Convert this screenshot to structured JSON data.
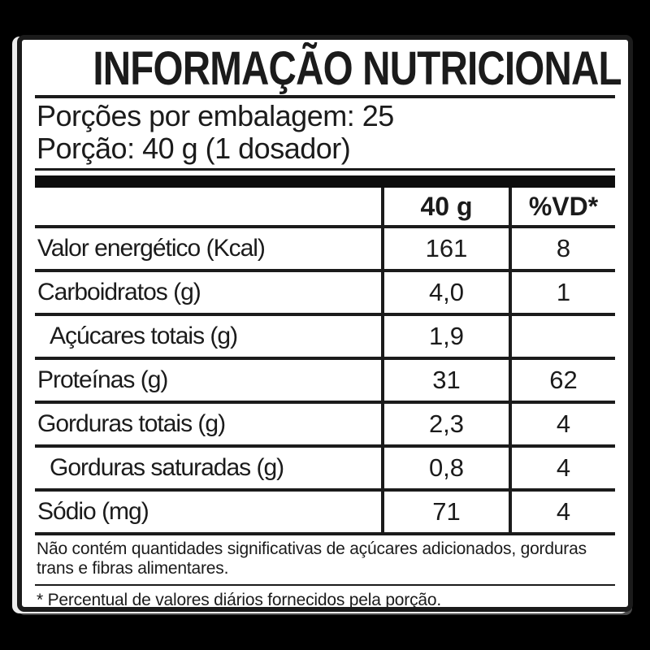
{
  "colors": {
    "background": "#000000",
    "panel": "#ffffff",
    "ink": "#1b1b1b"
  },
  "title": "INFORMAÇÃO NUTRICIONAL",
  "serving_info": {
    "servings_per_package": "Porções por embalagem: 25",
    "serving_size": "Porção: 40 g (1 dosador)"
  },
  "table": {
    "columns": {
      "amount": "40 g",
      "dv": "%VD*"
    },
    "rows": [
      {
        "name": "Valor energético (Kcal)",
        "amount": "161",
        "dv": "8",
        "indent": false
      },
      {
        "name": "Carboidratos (g)",
        "amount": "4,0",
        "dv": "1",
        "indent": false
      },
      {
        "name": "Açúcares totais (g)",
        "amount": "1,9",
        "dv": "",
        "indent": true
      },
      {
        "name": "Proteínas (g)",
        "amount": "31",
        "dv": "62",
        "indent": false
      },
      {
        "name": "Gorduras totais (g)",
        "amount": "2,3",
        "dv": "4",
        "indent": false
      },
      {
        "name": "Gorduras saturadas (g)",
        "amount": "0,8",
        "dv": "4",
        "indent": true
      },
      {
        "name": "Sódio (mg)",
        "amount": "71",
        "dv": "4",
        "indent": false
      }
    ]
  },
  "footnotes": {
    "no_significant_amounts": "Não contém quantidades significativas de açúcares adicionados, gorduras trans e fibras alimentares.",
    "daily_values": "* Percentual de valores diários fornecidos pela porção."
  }
}
